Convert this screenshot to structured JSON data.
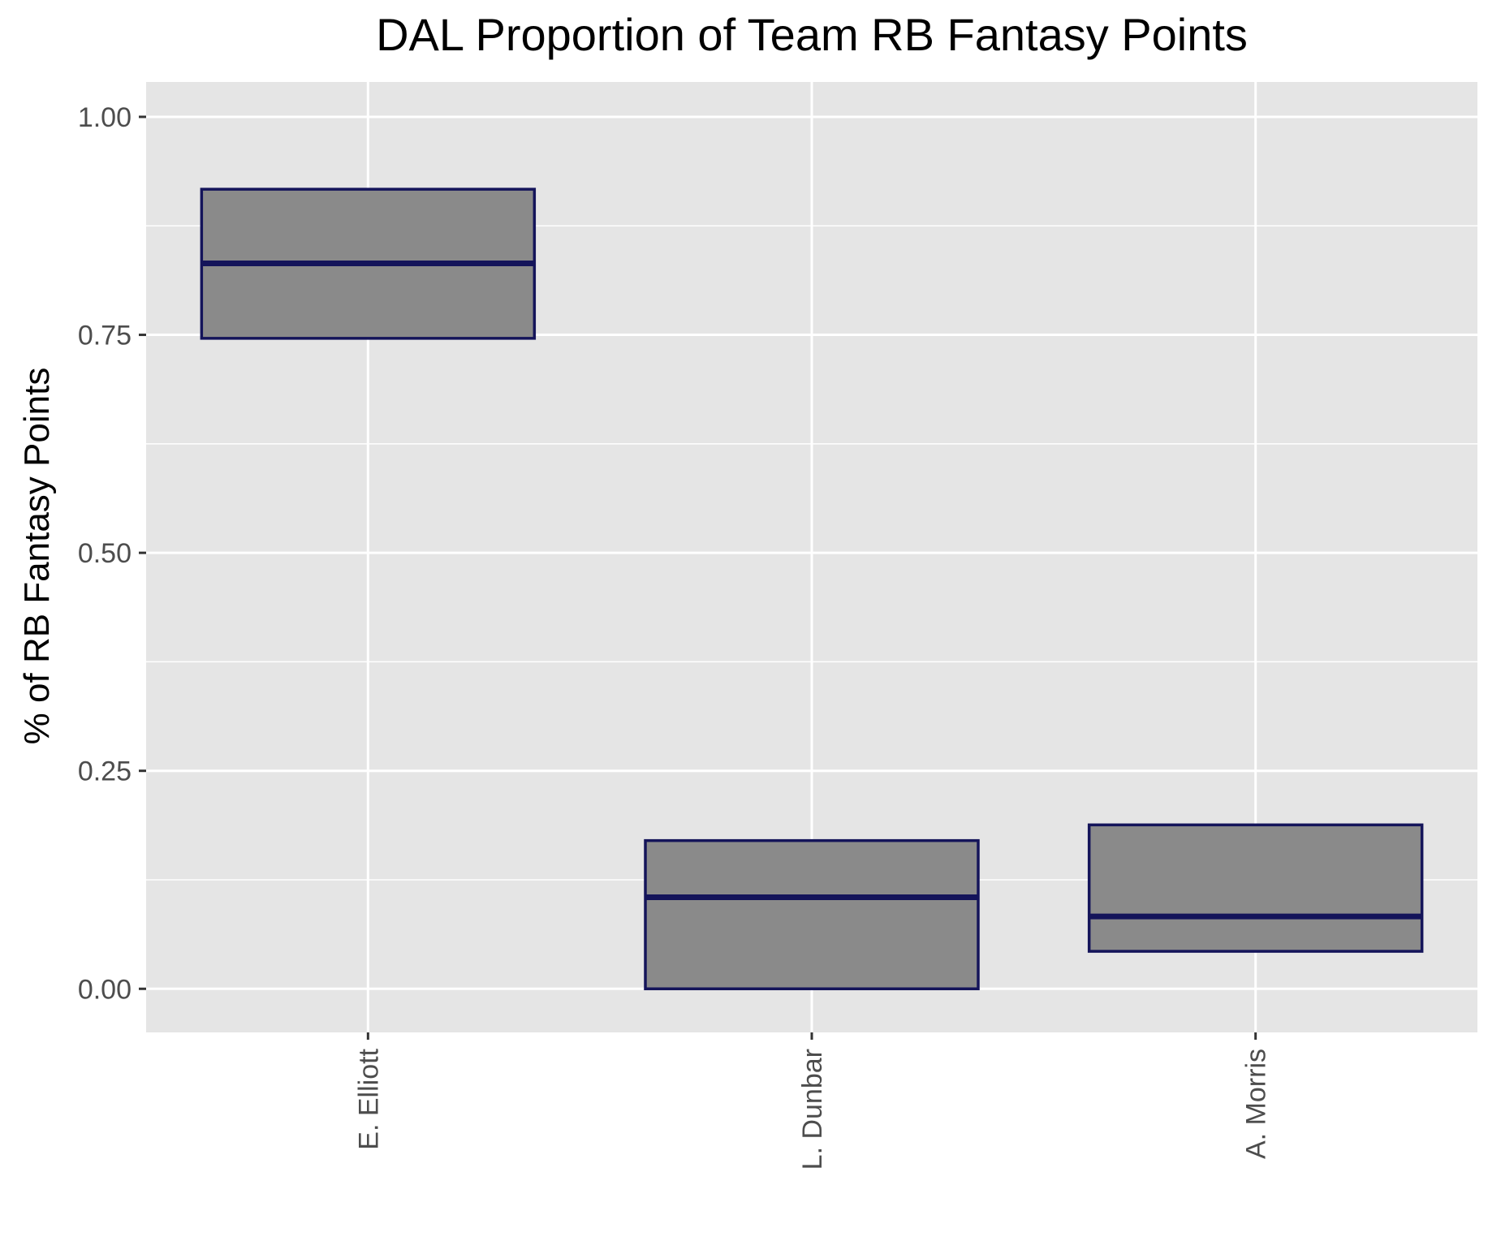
{
  "chart_data": {
    "type": "boxplot",
    "title": "DAL Proportion of Team RB Fantasy Points",
    "xlabel": "",
    "ylabel": "% of RB Fantasy Points",
    "ylim": [
      -0.05,
      1.04
    ],
    "yticks": [
      0.0,
      0.25,
      0.5,
      0.75,
      1.0
    ],
    "ytick_labels": [
      "0.00",
      "0.25",
      "0.50",
      "0.75",
      "1.00"
    ],
    "categories": [
      "E. Elliott",
      "L. Dunbar",
      "A. Morris"
    ],
    "boxes": [
      {
        "category": "E. Elliott",
        "q1": 0.746,
        "median": 0.832,
        "q3": 0.917
      },
      {
        "category": "L. Dunbar",
        "q1": 0.0,
        "median": 0.105,
        "q3": 0.17
      },
      {
        "category": "A. Morris",
        "q1": 0.043,
        "median": 0.083,
        "q3": 0.188
      }
    ],
    "grid": true,
    "colors": {
      "panel": "#e5e5e5",
      "grid": "#ffffff",
      "box_fill": "#8a8a8a",
      "box_outline": "#14145a",
      "tick_text": "#4d4d4d",
      "axis_tick": "#333333"
    }
  }
}
